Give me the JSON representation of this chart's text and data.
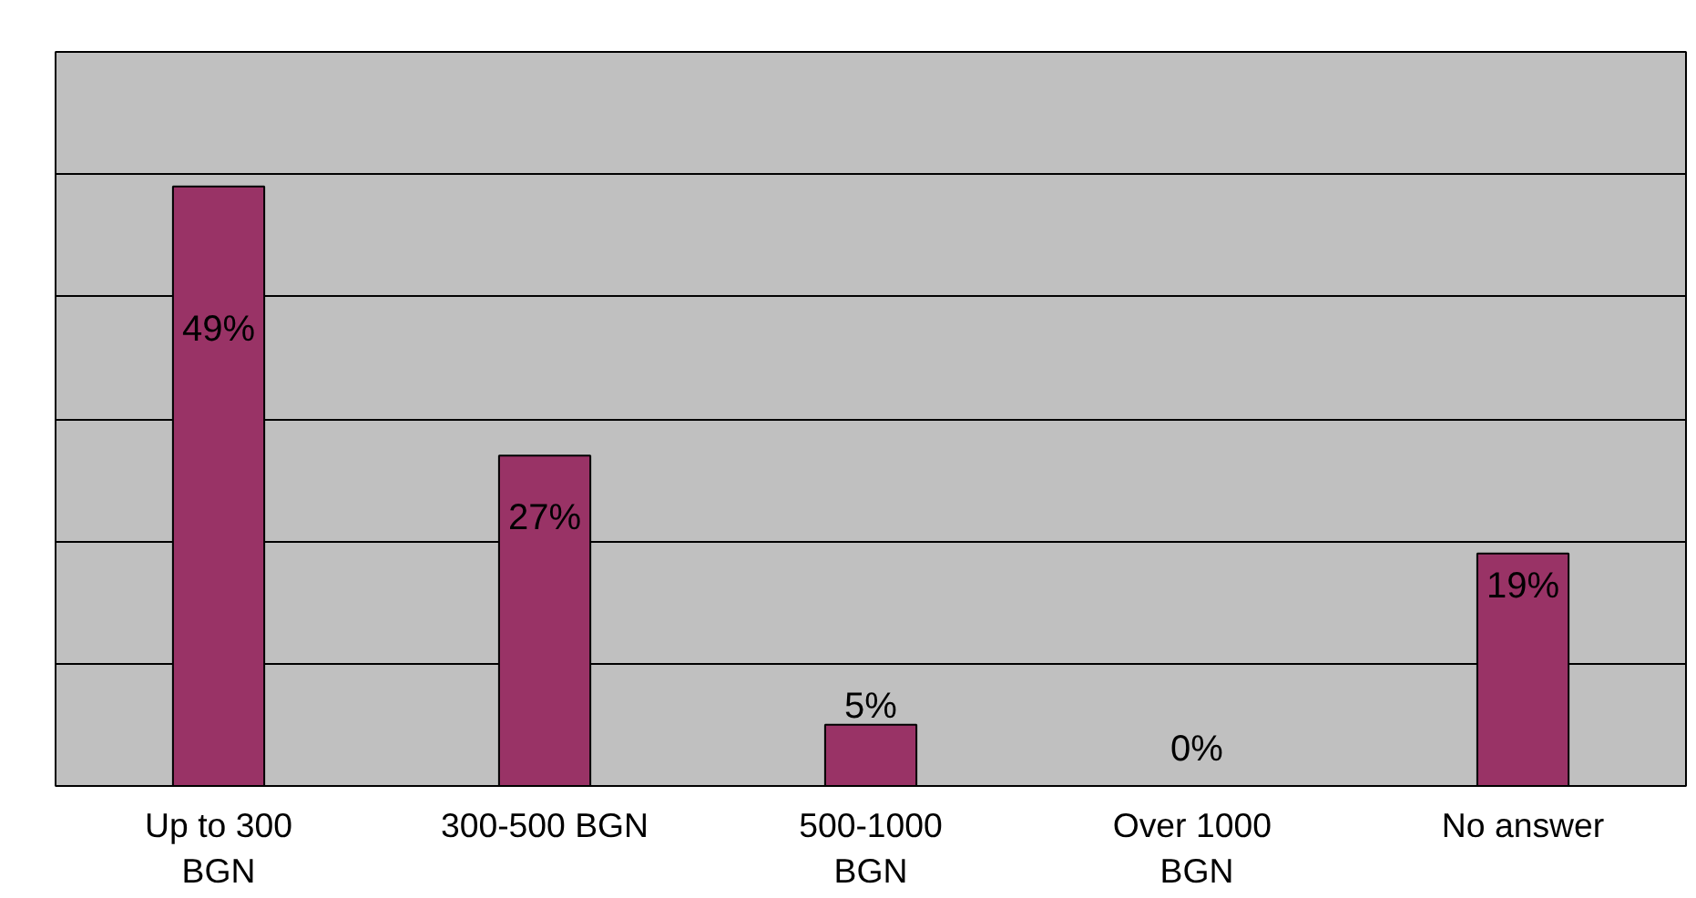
{
  "chart_data": {
    "type": "bar",
    "categories": [
      "Up to 300 BGN",
      "300-500 BGN",
      "500-1000 BGN",
      "Over  1000 BGN",
      "No answer"
    ],
    "values": [
      49,
      27,
      5,
      0,
      19
    ],
    "value_labels": [
      "49%",
      "27%",
      "5%",
      "0%",
      "19%"
    ],
    "color": "#993366",
    "ylim": [
      0,
      60
    ],
    "yticks": [
      {
        "value": 0,
        "label": null
      },
      {
        "value": 10,
        "label": null
      },
      {
        "value": 20,
        "label": null
      },
      {
        "value": 30,
        "label": null
      },
      {
        "value": 40,
        "label": null
      },
      {
        "value": 50,
        "label": null
      },
      {
        "value": 60,
        "label": null
      }
    ],
    "tick_labels": "x",
    "grid": "y"
  }
}
